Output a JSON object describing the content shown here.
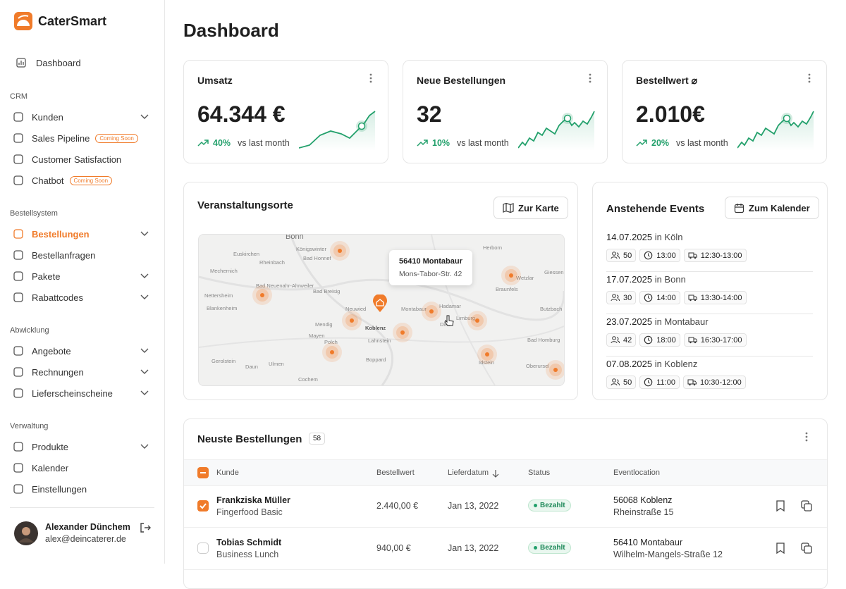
{
  "brand": "CaterSmart",
  "nav": {
    "dashboard": "Dashboard",
    "sections": [
      {
        "title": "CRM",
        "items": [
          {
            "label": "Kunden",
            "expandable": true
          },
          {
            "label": "Sales Pipeline",
            "badge": "Coming Soon"
          },
          {
            "label": "Customer Satisfaction"
          },
          {
            "label": "Chatbot",
            "badge": "Coming Soon"
          }
        ]
      },
      {
        "title": "Bestellsystem",
        "items": [
          {
            "label": "Bestellungen",
            "expandable": true,
            "active": true
          },
          {
            "label": "Bestellanfragen"
          },
          {
            "label": "Pakete",
            "expandable": true
          },
          {
            "label": "Rabattcodes",
            "expandable": true
          }
        ]
      },
      {
        "title": "Abwicklung",
        "items": [
          {
            "label": "Angebote",
            "expandable": true
          },
          {
            "label": "Rechnungen",
            "expandable": true
          },
          {
            "label": "Lieferscheinscheine",
            "expandable": true
          }
        ]
      },
      {
        "title": "Verwaltung",
        "items": [
          {
            "label": "Produkte",
            "expandable": true
          },
          {
            "label": "Kalender"
          },
          {
            "label": "Einstellungen"
          }
        ]
      }
    ]
  },
  "user": {
    "name": "Alexander Dünchem",
    "email": "alex@deincaterer.de"
  },
  "page_title": "Dashboard",
  "kpis": [
    {
      "title": "Umsatz",
      "value": "64.344 €",
      "change": "40%",
      "note": "vs last month"
    },
    {
      "title": "Neue Bestellungen",
      "value": "32",
      "change": "10%",
      "note": "vs last month"
    },
    {
      "title": "Bestellwert ⌀",
      "value": "2.010€",
      "change": "20%",
      "note": "vs last month"
    }
  ],
  "map": {
    "title": "Veranstaltungsorte",
    "button": "Zur Karte",
    "tooltip": {
      "title": "56410 Montabaur",
      "address": "Mons-Tabor-Str. 42"
    },
    "labels": [
      "Bonn",
      "Königswinter",
      "Euskirchen",
      "Rheinbach",
      "Bad Honnef",
      "Mechernich",
      "Bad Neuenahr-Ahrweiler",
      "Bad Breisig",
      "Nettersheim",
      "Blankenheim",
      "Neuwied",
      "Mendig",
      "Mayen",
      "Koblenz",
      "Lahnstein",
      "Montabaur",
      "Hadamar",
      "Limburg",
      "Diez",
      "Herborn",
      "Wetzlar",
      "Giessen",
      "Braunfels",
      "Butzbach",
      "Polch",
      "Boppard",
      "Idstein",
      "Gerolstein",
      "Daun",
      "Ulmen",
      "Cochem",
      "Bad Homburg",
      "Oberursel"
    ]
  },
  "events": {
    "title": "Anstehende Events",
    "button": "Zum Kalender",
    "items": [
      {
        "date": "14.07.2025",
        "city": "in Köln",
        "guests": "50",
        "time": "13:00",
        "delivery": "12:30-13:00"
      },
      {
        "date": "17.07.2025",
        "city": "in Bonn",
        "guests": "30",
        "time": "14:00",
        "delivery": "13:30-14:00"
      },
      {
        "date": "23.07.2025",
        "city": "in Montabaur",
        "guests": "42",
        "time": "18:00",
        "delivery": "16:30-17:00"
      },
      {
        "date": "07.08.2025",
        "city": "in Koblenz",
        "guests": "50",
        "time": "11:00",
        "delivery": "10:30-12:00"
      }
    ]
  },
  "orders": {
    "title": "Neuste Bestellungen",
    "count": "58",
    "columns": [
      "Kunde",
      "Bestellwert",
      "Lieferdatum",
      "Status",
      "Eventlocation"
    ],
    "rows": [
      {
        "name": "Frankziska Müller",
        "product": "Fingerfood Basic",
        "amount": "2.440,00 €",
        "date": "Jan 13, 2022",
        "status": "Bezahlt",
        "location": "56068 Koblenz",
        "street": "Rheinstraße 15",
        "checked": true
      },
      {
        "name": "Tobias Schmidt",
        "product": "Business Lunch",
        "amount": "940,00 €",
        "date": "Jan 13, 2022",
        "status": "Bezahlt",
        "location": "56410 Montabaur",
        "street": "Wilhelm-Mangels-Straße 12",
        "checked": false
      }
    ]
  }
}
